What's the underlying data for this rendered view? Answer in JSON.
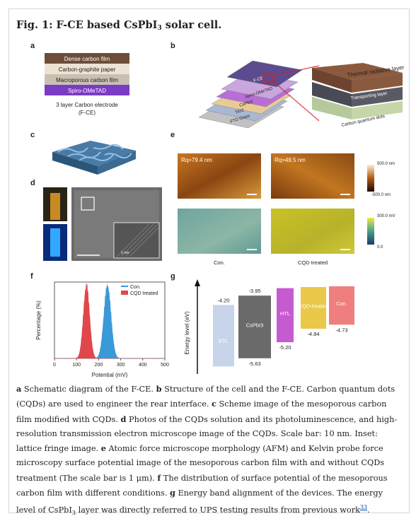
{
  "figure": {
    "title_prefix": "Fig. 1: F-CE based CsPbI",
    "title_sub": "3",
    "title_suffix": " solar cell."
  },
  "panels": {
    "a": {
      "label": "a",
      "layers": [
        "Dense carbon film",
        "Carbon-graphite paper",
        "Macroporous carbon film",
        "Spiro-OMeTAD"
      ],
      "caption_line1": "3 layer Carbon electrode",
      "caption_line2": "(F-CE)"
    },
    "b": {
      "label": "b",
      "stack": [
        "F-CE",
        "Spiro-OMeTAD",
        "CsPbI3",
        "TiO2",
        "FTO Glass"
      ],
      "zoom": [
        "Thermal radiative layer",
        "Transporting layer",
        "Carbon quantum dots"
      ]
    },
    "c": {
      "label": "c"
    },
    "d": {
      "label": "d",
      "scale_inset": "1 nm"
    },
    "e": {
      "label": "e",
      "ra_con": "Rq=79.4 nm",
      "ra_cqd": "Rq=49.5 nm",
      "afm_max": "500.0 nm",
      "afm_min": "-500.0 nm",
      "kp_max": "300.0 mV",
      "kp_min": "0.0",
      "label_con": "Con.",
      "label_cqd": "CQD treated"
    },
    "f": {
      "label": "f"
    },
    "g": {
      "label": "g"
    }
  },
  "chart_data": [
    {
      "type": "area",
      "xlabel": "Potential (mV)",
      "ylabel": "Percentage (%)",
      "xlim": [
        0,
        500
      ],
      "xticks": [
        0,
        100,
        200,
        300,
        400,
        500
      ],
      "legend_position": "top-right",
      "series": [
        {
          "name": "Con.",
          "color": "#3a9ad9",
          "center": 240,
          "width": 16,
          "peak": 1.0
        },
        {
          "name": "CQD treated",
          "color": "#e0474c",
          "center": 145,
          "width": 14,
          "peak": 1.0
        }
      ]
    },
    {
      "type": "bar",
      "ylabel": "Energy level (eV)",
      "categories": [
        "ETL",
        "CsPbI3",
        "HTL",
        "CQD-treated",
        "Con."
      ],
      "lumo": [
        -4.2,
        -3.95,
        null,
        null,
        null
      ],
      "homo": [
        null,
        -5.63,
        -5.2,
        -4.84,
        -4.73
      ],
      "lumo_labels": [
        "-4.20",
        "-3.95",
        "",
        "",
        ""
      ],
      "homo_labels": [
        "",
        "-5.63",
        "-5.20",
        "-4.84",
        "-4.73"
      ],
      "colors": [
        "#c8d4ea",
        "#6a6a6a",
        "#c65ad0",
        "#e9c84a",
        "#ef7f7f"
      ]
    }
  ],
  "caption": {
    "a_bold": "a",
    "a_text": " Schematic diagram of the F-CE. ",
    "b_bold": "b",
    "b_text": " Structure of the cell and the F-CE. Carbon quantum dots (CQDs) are used to engineer the rear interface. ",
    "c_bold": "c",
    "c_text": " Scheme image of the mesoporous carbon film modified with CQDs. ",
    "d_bold": "d",
    "d_text": " Photos of the CQDs solution and its photoluminescence, and high-resolution transmission electron microscope image of the CQDs. Scale bar: 10 nm. Inset: lattice fringe image. ",
    "e_bold": "e",
    "e_text": " Atomic force microscope morphology (AFM) and Kelvin probe force microscopy surface potential image of the mesoporous carbon film with and without CQDs treatment (The scale bar is 1 μm). ",
    "f_bold": "f",
    "f_text": " The distribution of surface potential of the mesoporous carbon film with different conditions. ",
    "g_bold": "g",
    "g_text": " Energy band alignment of the devices. The energy level of CsPbI",
    "g_sub": "3",
    "g_text2": " layer was directly referred to UPS testing results from previous work",
    "ref": "33",
    "end": "."
  }
}
